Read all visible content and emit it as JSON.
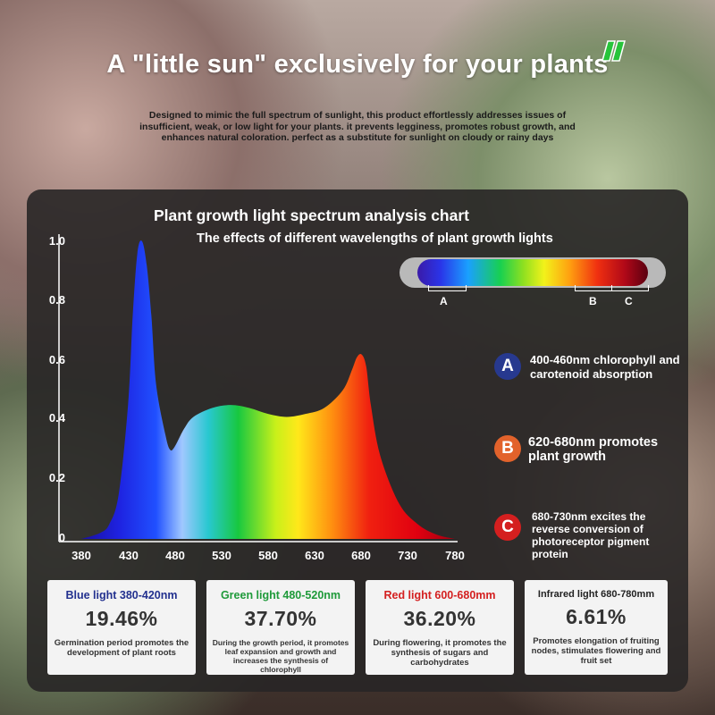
{
  "hero": {
    "title": "A \"little sun\" exclusively for your plants",
    "description": "Designed to mimic the full spectrum of sunlight, this product effortlessly addresses issues of insufficient, weak, or low light for your plants. it prevents legginess, promotes robust growth, and enhances natural coloration. perfect as a substitute for sunlight on cloudy or rainy days",
    "logo_icon": "leaf-logo-icon",
    "logo_color": "#27c43a"
  },
  "panel": {
    "title": "Plant growth light spectrum analysis chart",
    "subtitle": "The effects of different wavelengths of plant growth lights"
  },
  "chart_data": {
    "type": "area",
    "x": [
      380,
      400,
      410,
      420,
      430,
      435,
      440,
      445,
      450,
      455,
      460,
      470,
      475,
      480,
      490,
      500,
      520,
      540,
      560,
      580,
      600,
      620,
      640,
      660,
      670,
      675,
      680,
      685,
      690,
      700,
      720,
      740,
      760,
      780
    ],
    "y": [
      0,
      0.02,
      0.05,
      0.15,
      0.45,
      0.75,
      0.96,
      1.0,
      0.92,
      0.75,
      0.52,
      0.35,
      0.3,
      0.31,
      0.37,
      0.41,
      0.44,
      0.45,
      0.44,
      0.42,
      0.41,
      0.42,
      0.44,
      0.5,
      0.57,
      0.61,
      0.62,
      0.58,
      0.45,
      0.28,
      0.12,
      0.05,
      0.015,
      0
    ],
    "yticks": [
      "1.0",
      "0.8",
      "0.6",
      "0.4",
      "0.2",
      "0"
    ],
    "ytick_values": [
      1.0,
      0.8,
      0.6,
      0.4,
      0.2,
      0
    ],
    "xticks": [
      "380",
      "430",
      "480",
      "530",
      "580",
      "630",
      "680",
      "730",
      "780"
    ],
    "xtick_values": [
      380,
      430,
      480,
      530,
      580,
      630,
      680,
      730,
      780
    ],
    "xlim": [
      380,
      780
    ],
    "ylim": [
      0,
      1.0
    ],
    "fill": "visible-spectrum-gradient"
  },
  "spectrum_bar": {
    "labels": [
      "A",
      "B",
      "C"
    ]
  },
  "notes": [
    {
      "badge": "A",
      "color": "#27398f",
      "text": "400-460nm chlorophyll and carotenoid absorption"
    },
    {
      "badge": "B",
      "color": "#e2622b",
      "text": "620-680nm promotes plant growth"
    },
    {
      "badge": "C",
      "color": "#d41f1f",
      "text": "680-730nm excites the reverse conversion of photoreceptor pigment protein"
    }
  ],
  "cards": [
    {
      "heading": "Blue light 380-420nm",
      "color": "#23318f",
      "percent": "19.46%",
      "desc": "Germination period promotes the development of plant roots"
    },
    {
      "heading": "Green light 480-520nm",
      "color": "#1f9a3a",
      "percent": "37.70%",
      "desc": "During the growth period, it promotes leaf expansion and growth and increases the synthesis of chlorophyll"
    },
    {
      "heading": "Red light 600-680mm",
      "color": "#d42020",
      "percent": "36.20%",
      "desc": "During flowering, it promotes the synthesis of sugars and carbohydrates"
    },
    {
      "heading": "Infrared light 680-780mm",
      "color": "#222222",
      "percent": "6.61%",
      "desc": "Promotes elongation of fruiting nodes, stimulates flowering and fruit set"
    }
  ]
}
